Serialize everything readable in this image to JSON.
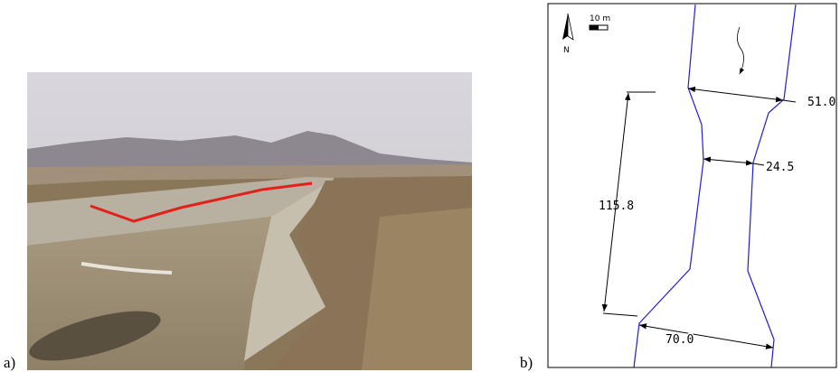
{
  "panel_a": {
    "label": "a)"
  },
  "panel_b": {
    "label": "b)",
    "north": "N",
    "scale": "10 m",
    "dimensions": {
      "top_width": "51.0",
      "narrow_width": "24.5",
      "length": "115.8",
      "bottom_width": "70.0"
    }
  }
}
